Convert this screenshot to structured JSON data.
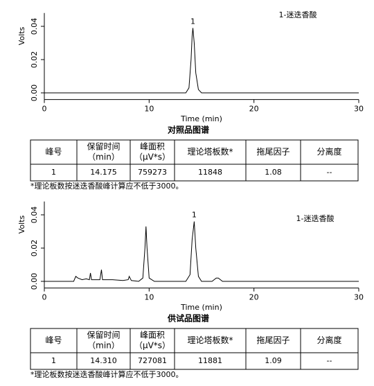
{
  "chart_data": [
    {
      "type": "line",
      "xlabel": "Time (min)",
      "ylabel": "Volts",
      "color": "#000000",
      "xlim": [
        0,
        30
      ],
      "xticks": [
        0,
        10,
        20,
        30
      ],
      "ylim": [
        -0.004,
        0.048
      ],
      "yticks": [
        {
          "value": 0,
          "label": "0.00"
        },
        {
          "value": 0.02,
          "label": "0.02"
        },
        {
          "value": 0.04,
          "label": "0.04"
        }
      ],
      "x": [
        0,
        2,
        4,
        6,
        8,
        10,
        12,
        13.5,
        13.8,
        14.0,
        14.1,
        14.175,
        14.3,
        14.45,
        14.7,
        15,
        17,
        20,
        23,
        26,
        28,
        30
      ],
      "values": [
        0,
        0,
        0,
        0,
        0,
        0,
        0,
        0,
        0.003,
        0.02,
        0.034,
        0.039,
        0.03,
        0.012,
        0.002,
        0,
        0,
        0,
        0,
        0,
        0,
        0
      ],
      "annotations": [
        {
          "text": "1",
          "x": 14.175,
          "y": 0.039
        },
        {
          "text": "1-迷迭香酸"
        }
      ]
    },
    {
      "type": "line",
      "xlabel": "Time (min)",
      "ylabel": "Volts",
      "color": "#000000",
      "xlim": [
        0,
        30
      ],
      "xticks": [
        0,
        10,
        20,
        30
      ],
      "ylim": [
        -0.004,
        0.048
      ],
      "yticks": [
        {
          "value": 0,
          "label": "0.00"
        },
        {
          "value": 0.02,
          "label": "0.02"
        },
        {
          "value": 0.04,
          "label": "0.04"
        }
      ],
      "x": [
        0,
        2.8,
        3.0,
        3.2,
        3.6,
        4.0,
        4.3,
        4.4,
        4.5,
        4.8,
        5.3,
        5.45,
        5.55,
        5.7,
        6.5,
        7.5,
        8.0,
        8.1,
        8.3,
        9.0,
        9.4,
        9.6,
        9.7,
        9.8,
        10.0,
        10.5,
        11,
        12,
        13.5,
        13.9,
        14.1,
        14.3,
        14.45,
        14.7,
        15,
        16,
        16.4,
        16.6,
        17,
        18,
        20,
        23,
        26,
        30
      ],
      "values": [
        0,
        0,
        0.003,
        0.002,
        0.001,
        0.0015,
        0.001,
        0.005,
        0.001,
        0.001,
        0.001,
        0.007,
        0.001,
        0.001,
        0.001,
        0.0005,
        0.001,
        0.003,
        0.0005,
        0,
        0.002,
        0.02,
        0.033,
        0.02,
        0.002,
        0,
        0,
        0,
        0,
        0.004,
        0.025,
        0.036,
        0.02,
        0.003,
        0,
        0,
        0.002,
        0.002,
        0,
        0,
        0,
        0,
        0,
        0
      ],
      "annotations": [
        {
          "text": "1",
          "x": 14.3,
          "y": 0.036
        },
        {
          "text": "1-迷迭香酸"
        }
      ]
    }
  ],
  "sections": [
    {
      "caption": "对照品图谱",
      "table": {
        "header": [
          [
            "峰号"
          ],
          [
            "保留时间",
            "（min）"
          ],
          [
            "峰面积",
            "（μV*s）"
          ],
          [
            "理论塔板数*"
          ],
          [
            "拖尾因子"
          ],
          [
            "分离度"
          ]
        ],
        "rows": [
          [
            "1",
            "14.175",
            "759273",
            "11848",
            "1.08",
            "--"
          ]
        ]
      },
      "note": "*理论板数按迷迭香酸峰计算应不低于3000。"
    },
    {
      "caption": "供试品图谱",
      "table": {
        "header": [
          [
            "峰号"
          ],
          [
            "保留时间",
            "（min）"
          ],
          [
            "峰面积",
            "（μV*s）"
          ],
          [
            "理论塔板数*"
          ],
          [
            "拖尾因子"
          ],
          [
            "分离度"
          ]
        ],
        "rows": [
          [
            "1",
            "14.310",
            "727081",
            "11881",
            "1.09",
            "--"
          ]
        ]
      },
      "note": "*理论板数按迷迭香酸峰计算应不低于3000。"
    }
  ]
}
